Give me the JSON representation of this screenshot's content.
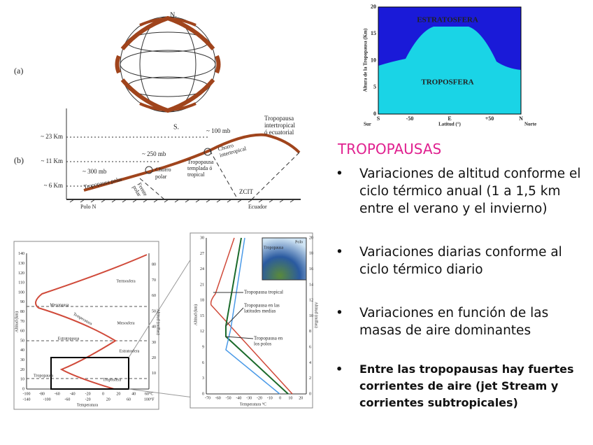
{
  "figure_a": {
    "north": "N.",
    "south": "S.",
    "label_a": "(a)",
    "label_b": "(b)",
    "altitudes": [
      "~ 23 Km",
      "~ 11 Km",
      "~ 6 Km"
    ],
    "mb100": "~ 100 mb",
    "mb250": "~ 250 mb",
    "mb300": "~ 300 mb",
    "trop_inter": [
      "Tropopausa",
      "intertropical",
      "ó ecuatorial"
    ],
    "jet_inter": [
      "Chorro",
      "intertropical"
    ],
    "trop_temp": [
      "Tropopausa",
      "templada ó",
      "tropical"
    ],
    "jet_polar": [
      "Chorro",
      "polar"
    ],
    "front_polar": [
      "Frente",
      "polar"
    ],
    "trop_polar": "Tropopausa polar",
    "zcit": "ZCIT",
    "pole": "Polo N",
    "equator": "Ecuador"
  },
  "height_chart": {
    "y_label": "Altura de la Tropopausa (Km)",
    "yticks": [
      0,
      5,
      10,
      15,
      20
    ],
    "xticks": [
      "S",
      "-50",
      "E",
      "+50",
      "N"
    ],
    "x_label": "Latitud (°)",
    "south": "Sur",
    "north": "Norte",
    "upper": "ESTRATOSFERA",
    "lower": "TROPOSFERA"
  },
  "text": {
    "title": "TROPOPAUSAS",
    "bullet": "•",
    "bullets": [
      "Variaciones de altitud conforme el ciclo térmico anual (1 a 1,5 km entre el verano y el invierno)",
      "Variaciones diarias conforme al ciclo térmico diario",
      "Variaciones en función de las masas de aire dominantes",
      "Entre las tropopausas hay fuertes corrientes de aire (jet Stream y corrientes subtropicales)"
    ]
  },
  "temperature_profile": {
    "km_ticks": [
      0,
      10,
      20,
      30,
      40,
      50,
      60,
      70,
      80,
      90,
      100,
      110,
      120,
      130,
      140
    ],
    "mile_ticks": [
      10,
      20,
      30,
      40,
      50,
      60,
      70,
      80
    ],
    "c_ticks": [
      "-100",
      "-80",
      "-60",
      "-40",
      "-20",
      "0",
      "20",
      "40",
      "60°C"
    ],
    "f_ticks": [
      "-140",
      "-100",
      "-60",
      "-20",
      "20",
      "60",
      "100°F"
    ],
    "y_label": "Altitud (km)",
    "y2_label": "Altitud (millas)",
    "x_label": "Temperatura",
    "layers": {
      "thermo": "Termosfera",
      "mesopause": "Mesopausa",
      "meso": "Mesosfera",
      "curve": "Temperatura",
      "stratopause": "Estratopausa",
      "strato": "Estratosfera",
      "tropopause": "Tropopausa",
      "tropo": "Troposfera"
    }
  },
  "zoom_profile": {
    "km_ticks": [
      0,
      3,
      6,
      9,
      12,
      15,
      18,
      21,
      24,
      27,
      30
    ],
    "mile_ticks": [
      0,
      2,
      4,
      6,
      8,
      10,
      12,
      14,
      16,
      18,
      20
    ],
    "c_ticks": [
      "-70",
      "-60",
      "-50",
      "-40",
      "-30",
      "-20",
      "-10",
      "0",
      "10",
      "20"
    ],
    "y_label": "Altitud (km)",
    "y2_label": "Altitud (millas)",
    "x_label": "Temperatura °C",
    "tropical": "Tropopausa tropical",
    "mid": [
      "Tropopausa en las",
      "latitudes medias"
    ],
    "polar": [
      "Tropopausa en",
      "los polos"
    ],
    "inset_pole": "Polo",
    "inset_trop": "Tropopausa"
  }
}
